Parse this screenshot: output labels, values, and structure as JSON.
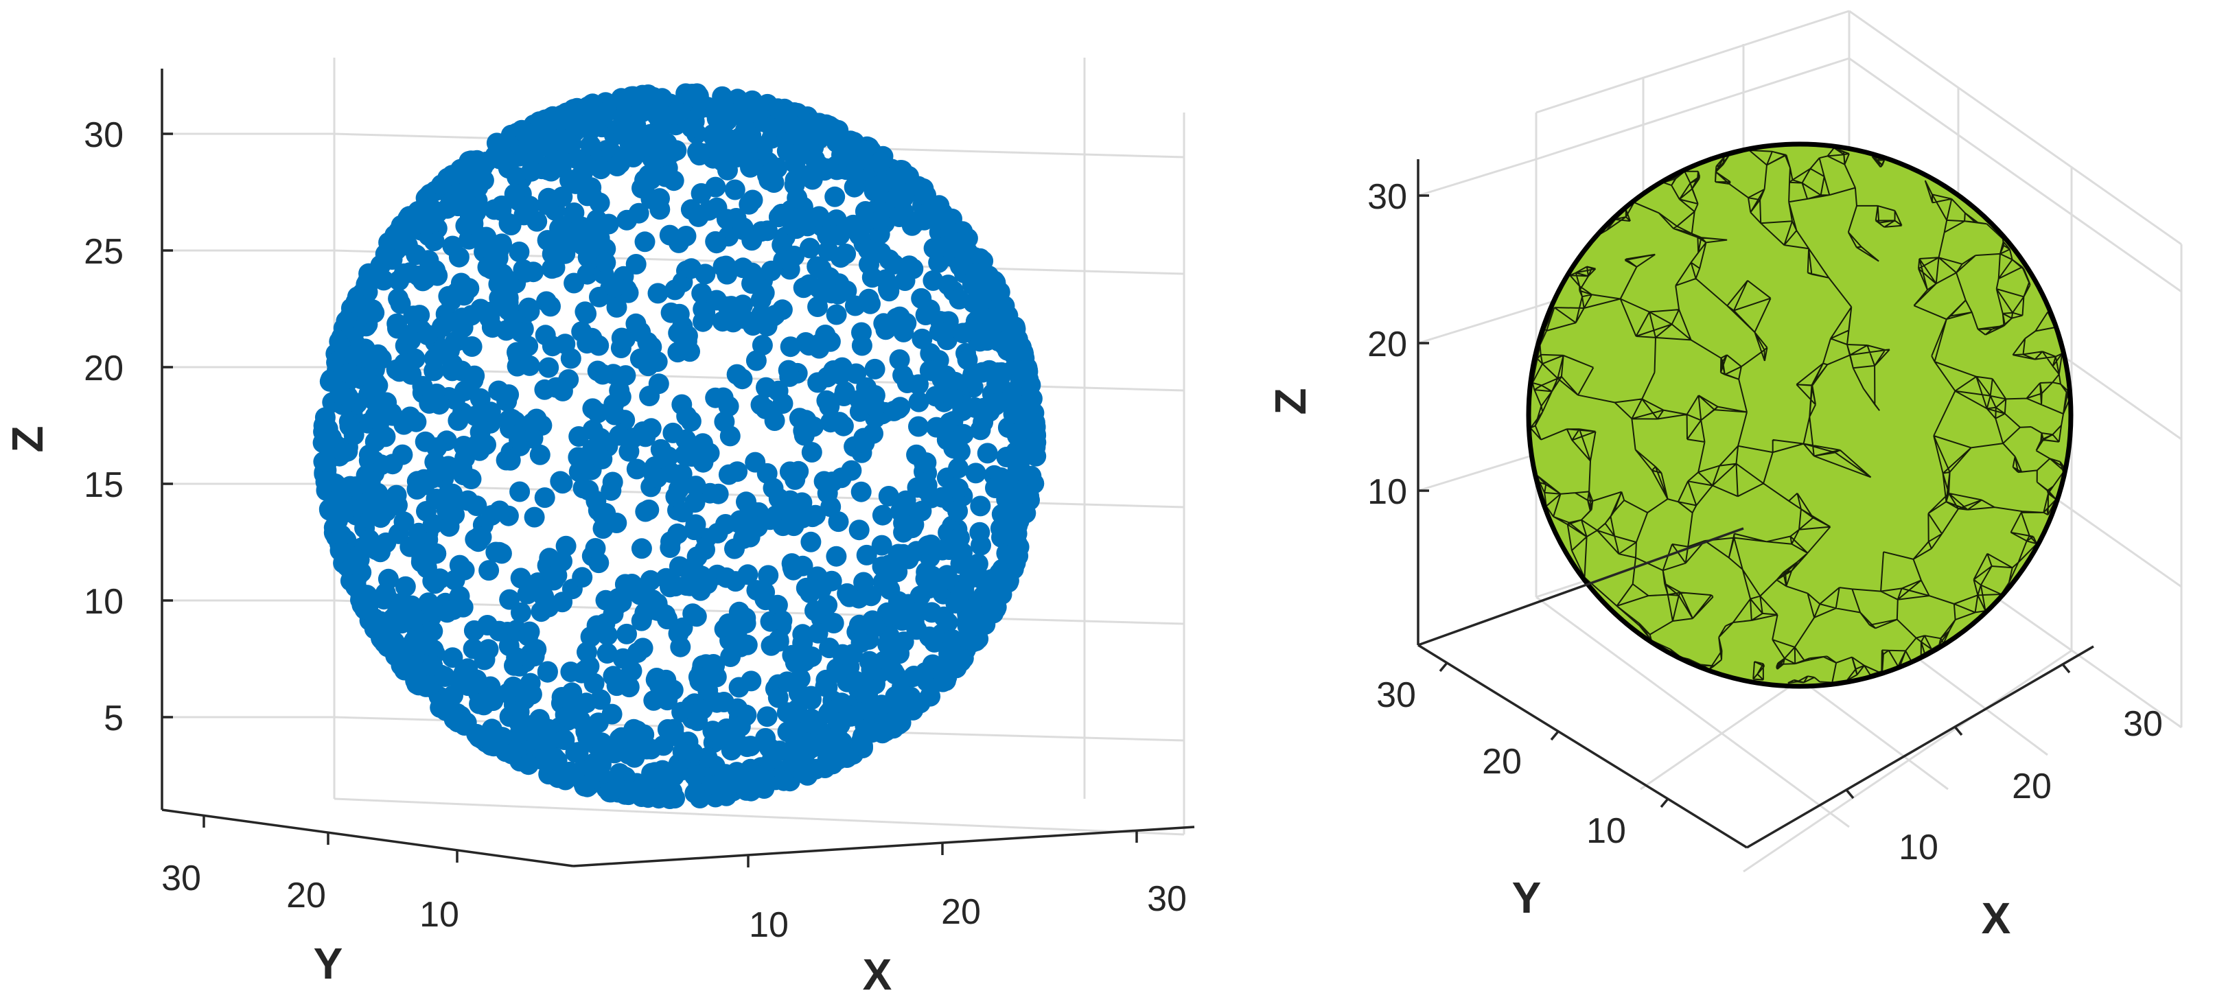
{
  "chart_data": [
    {
      "type": "scatter",
      "title": "",
      "description_series": "points",
      "xlabel": "X",
      "ylabel": "Y",
      "zlabel": "Z",
      "xticks": [
        "10",
        "20",
        "30"
      ],
      "yticks": [
        "30",
        "20",
        "10"
      ],
      "zticks": [
        "30",
        "25",
        "20",
        "15",
        "10",
        "5"
      ],
      "xlim": [
        2,
        33
      ],
      "ylim": [
        2,
        33
      ],
      "zlim": [
        1,
        33
      ],
      "sphere": {
        "center": [
          17,
          17,
          17
        ],
        "radius": 16
      },
      "marker_color": "#0072BD",
      "marker": "filled-circle",
      "grid": true
    },
    {
      "type": "surface",
      "title": "",
      "xlabel": "X",
      "ylabel": "Y",
      "zlabel": "Z",
      "xticks": [
        "10",
        "20",
        "30"
      ],
      "yticks": [
        "30",
        "20",
        "10"
      ],
      "zticks": [
        "30",
        "20",
        "10"
      ],
      "xlim": [
        2,
        33
      ],
      "ylim": [
        2,
        33
      ],
      "zlim": [
        1,
        33
      ],
      "sphere": {
        "center": [
          17,
          17,
          17
        ],
        "radius": 16
      },
      "face_color": "#9ACD32",
      "edge_color": "#000000",
      "mesh": "triangulated",
      "grid": true
    }
  ]
}
